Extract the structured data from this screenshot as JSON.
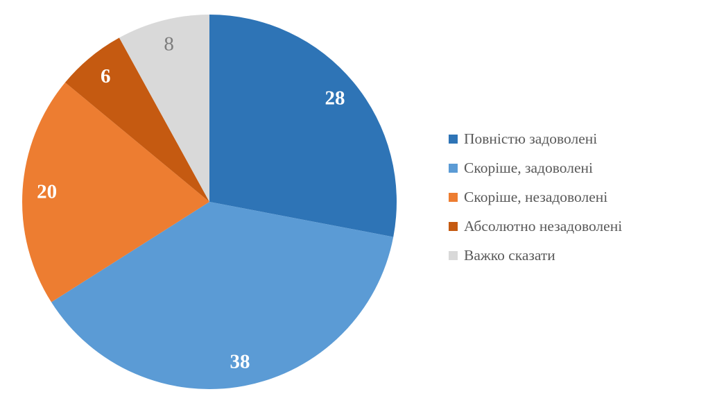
{
  "chart_data": {
    "type": "pie",
    "title": "",
    "categories": [
      "Повністю задоволені",
      "Скоріше, задоволені",
      "Скоріше, незадоволені",
      "Абсолютно незадоволені",
      "Важко сказати"
    ],
    "values": [
      28,
      38,
      20,
      6,
      8
    ],
    "data_labels": [
      "28",
      "38",
      "20",
      "6",
      "8"
    ],
    "colors": [
      "#2E74B6",
      "#5B9BD5",
      "#ED7D31",
      "#C55A11",
      "#D9D9D9"
    ],
    "data_label_colors": [
      "#FFFFFF",
      "#FFFFFF",
      "#FFFFFF",
      "#FFFFFF",
      "#7D7D7D"
    ],
    "data_label_weights": [
      "bold",
      "bold",
      "bold",
      "bold",
      "normal"
    ],
    "start_angle_deg": 0,
    "direction": "clockwise",
    "units": "percent",
    "total": 100,
    "legend_position": "right",
    "legend_text_color": "#595959",
    "background_color": "#FFFFFF",
    "grid": false
  }
}
